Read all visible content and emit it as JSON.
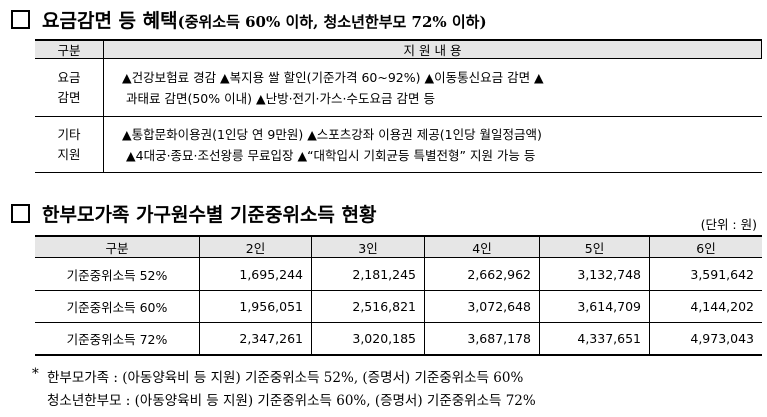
{
  "section1": {
    "title": "요금감면 등 혜택",
    "subtitle": "(중위소득 60% 이하, 청소년한부모 72% 이하)",
    "table": {
      "header": [
        "구분",
        "지 원 내 용"
      ],
      "rows": [
        {
          "label": [
            "요금",
            "감면"
          ],
          "lines": [
            "▲건강보험료 경감 ▲복지용 쌀 할인(기준가격 60~92%) ▲이동통신요금 감면 ▲",
            "과태료 감면(50% 이내) ▲난방·전기·가스·수도요금 감면 등"
          ]
        },
        {
          "label": [
            "기타",
            "지원"
          ],
          "lines": [
            "▲통합문화이용권(1인당 연 9만원) ▲스포츠강좌 이용권 제공(1인당 월일정금액)",
            "▲4대궁·종묘·조선왕릉 무료입장 ▲“대학입시 기회균등 특별전형” 지원 가능 등"
          ]
        }
      ]
    }
  },
  "section2": {
    "title": "한부모가족 가구원수별 기준중위소득 현황",
    "unit": "(단위 : 원)",
    "table": {
      "header": [
        "구분",
        "2인",
        "3인",
        "4인",
        "5인",
        "6인"
      ],
      "rows": [
        [
          "기준중위소득 52%",
          "1,695,244",
          "2,181,245",
          "2,662,962",
          "3,132,748",
          "3,591,642"
        ],
        [
          "기준중위소득 60%",
          "1,956,051",
          "2,516,821",
          "3,072,648",
          "3,614,709",
          "4,144,202"
        ],
        [
          "기준중위소득 72%",
          "2,347,261",
          "3,020,185",
          "3,687,178",
          "4,337,651",
          "4,973,043"
        ]
      ]
    }
  },
  "notes": {
    "mark": "*",
    "lines": [
      "한부모가족 : (아동양육비 등 지원) 기준중위소득 52%, (증명서) 기준중위소득 60%",
      "청소년한부모 : (아동양육비 등 지원) 기준중위소득 60%, (증명서) 기준중위소득 72%"
    ]
  }
}
